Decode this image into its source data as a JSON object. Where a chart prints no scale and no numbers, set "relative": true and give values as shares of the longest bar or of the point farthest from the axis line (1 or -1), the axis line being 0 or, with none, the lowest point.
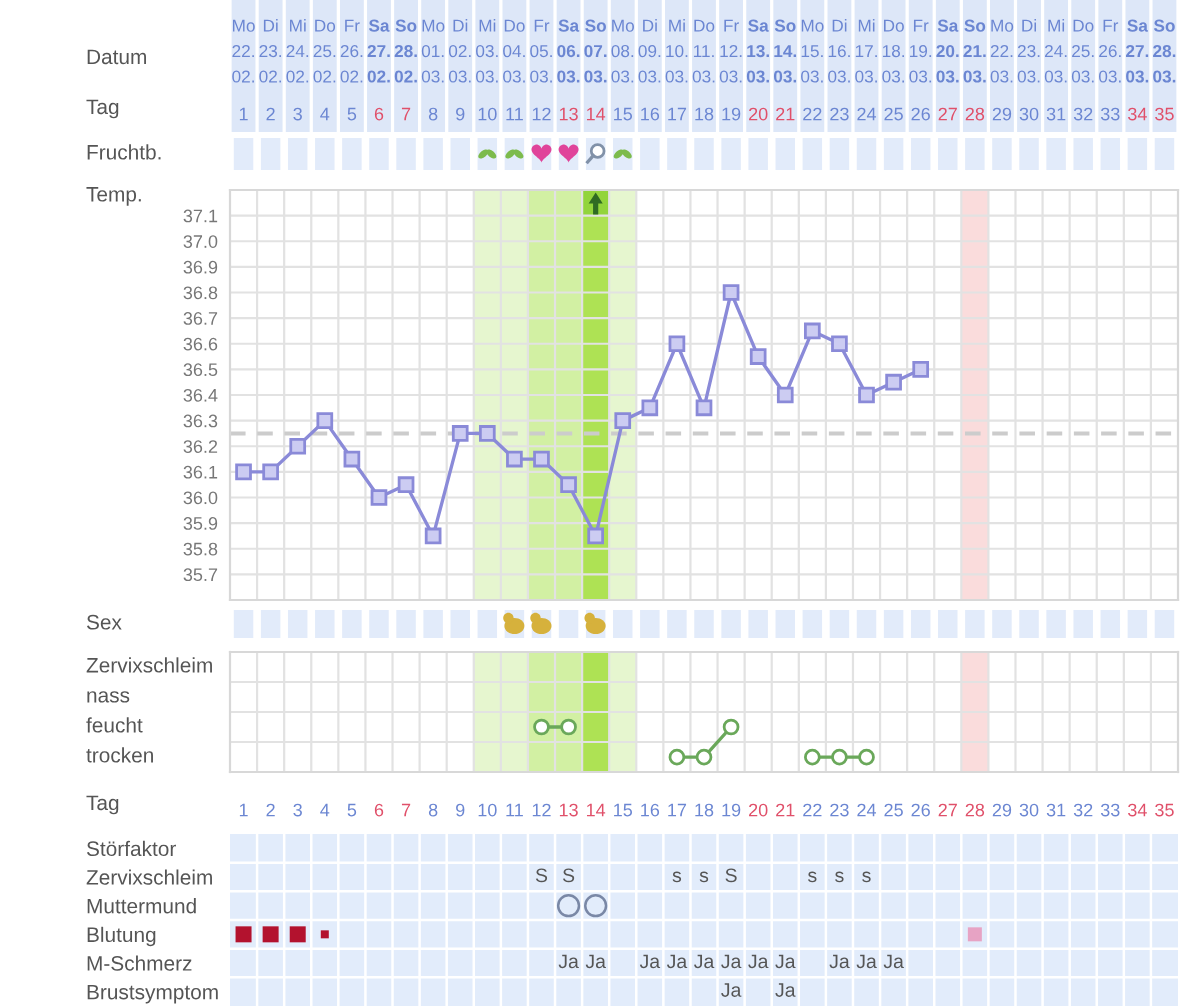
{
  "chart_data": [
    {
      "type": "line",
      "xlabel": "Datum",
      "ylabel": "Temp.",
      "x2label": "Tag",
      "categories": [
        "Mo\n22.\n02.",
        "Di\n23.\n02.",
        "Mi\n24.\n02.",
        "Do\n25.\n02.",
        "Fr\n26.\n02.",
        "Sa\n27.\n02.",
        "So\n28.\n02.",
        "Mo\n01.\n03.",
        "Di\n02.\n03.",
        "Mi\n03.\n03.",
        "Do\n04.\n03.",
        "Fr\n05.\n03.",
        "Sa\n06.\n03.",
        "So\n07.\n03.",
        "Mo\n08.\n03.",
        "Di\n09.\n03.",
        "Mi\n10.\n03.",
        "Do\n11.\n03.",
        "Fr\n12.\n03.",
        "Sa\n13.\n03.",
        "So\n14.\n03.",
        "Mo\n15.\n03.",
        "Di\n16.\n03.",
        "Mi\n17.\n03.",
        "Do\n18.\n03.",
        "Fr\n19.\n03.",
        "Sa\n20.\n03.",
        "So\n21.\n03.",
        "Mo\n22.\n03.",
        "Di\n23.\n03.",
        "Mi\n24.\n03.",
        "Do\n25.\n03.",
        "Fr\n26.\n03.",
        "Sa\n27.\n03.",
        "So\n28.\n03."
      ],
      "x2lim": [
        0.5,
        35.5
      ],
      "x2ticks": [
        1,
        2,
        3,
        4,
        5,
        6,
        7,
        8,
        9,
        10,
        11,
        12,
        13,
        14,
        15,
        16,
        17,
        18,
        19,
        20,
        21,
        22,
        23,
        24,
        25,
        26,
        27,
        28,
        29,
        30,
        31,
        32,
        33,
        34,
        35
      ],
      "series": [
        {
          "color": "#8a8ad8",
          "values": [
            36.1,
            36.1,
            36.2,
            36.3,
            36.15,
            36.0,
            36.05,
            35.85,
            36.25,
            36.25,
            36.15,
            36.15,
            36.05,
            35.85,
            36.3,
            36.35,
            36.6,
            36.35,
            36.8,
            36.55,
            36.4,
            36.65,
            36.6,
            36.4,
            36.45,
            36.5,
            null,
            null,
            null,
            null,
            null,
            null,
            null,
            null,
            null
          ]
        }
      ],
      "ylim": [
        35.6,
        37.2
      ],
      "yticks": [
        35.7,
        35.8,
        35.9,
        {
          "value": 36,
          "label": "36.0"
        },
        36.1,
        36.2,
        36.3,
        36.4,
        36.5,
        36.6,
        36.7,
        36.8,
        36.9,
        {
          "value": 37,
          "label": "37.0"
        },
        37.1
      ],
      "marker": "square",
      "line_style": "solid",
      "grid": true,
      "ref_lines": [
        {
          "axis": "y",
          "value": 36.25,
          "line_style": "dashed",
          "color": "#cccccc"
        }
      ],
      "bands": [
        {
          "axis": "x",
          "from": "Mi\n03.\n03.",
          "to": "Do\n04.\n03.",
          "color": "#e6f6cf"
        },
        {
          "axis": "x",
          "from": "Fr\n05.\n03.",
          "to": "Sa\n06.\n03.",
          "color": "#d2f0a3"
        },
        {
          "axis": "x",
          "from": "So\n07.\n03.",
          "to": "So\n07.\n03.",
          "color": "#aee254"
        },
        {
          "axis": "x",
          "from": "Mo\n08.\n03.",
          "to": "Mo\n08.\n03.",
          "color": "#e6f6cf"
        },
        {
          "axis": "x",
          "from": "So\n21.\n03.",
          "to": "So\n21.\n03.",
          "color": "#fadcdc"
        }
      ],
      "annotations": [
        "Fruchtb.",
        "Sex"
      ]
    },
    {
      "type": "line",
      "title": "Zervixschleim",
      "relative": true,
      "tick_labels": false,
      "categories": [
        "1",
        "2",
        "3",
        "4",
        "5",
        "6",
        "7",
        "8",
        "9",
        "10",
        "11",
        "12",
        "13",
        "14",
        "15",
        "16",
        "17",
        "18",
        "19",
        "20",
        "21",
        "22",
        "23",
        "24",
        "25",
        "26",
        "27",
        "28",
        "29",
        "30",
        "31",
        "32",
        "33",
        "34",
        "35"
      ],
      "series": [
        {
          "color": "#6aa85a",
          "values": [
            null,
            null,
            null,
            null,
            null,
            null,
            null,
            null,
            null,
            null,
            null,
            1,
            1,
            null,
            null,
            null,
            0.33,
            0.33,
            1,
            null,
            null,
            0.33,
            0.33,
            0.33,
            null,
            null,
            null,
            null,
            null,
            null,
            null,
            null,
            null,
            null,
            null
          ]
        }
      ],
      "annotations": [
        "nass",
        "feucht",
        "trocken"
      ],
      "marker": "circle",
      "line_style": "solid",
      "grid": true,
      "bands": [
        {
          "axis": "x",
          "from": "10",
          "to": "11",
          "color": "#e6f6cf"
        },
        {
          "axis": "x",
          "from": "12",
          "to": "13",
          "color": "#d2f0a3"
        },
        {
          "axis": "x",
          "from": "14",
          "to": "14",
          "color": "#aee254"
        },
        {
          "axis": "x",
          "from": "15",
          "to": "15",
          "color": "#e6f6cf"
        },
        {
          "axis": "x",
          "from": "28",
          "to": "28",
          "color": "#fadcdc"
        }
      ]
    },
    {
      "type": "heatmap",
      "xlabel": "Tag",
      "grid": true,
      "categories": [
        "1",
        "2",
        "3",
        "4",
        "5",
        "6",
        "7",
        "8",
        "9",
        "10",
        "11",
        "12",
        "13",
        "14",
        "15",
        "16",
        "17",
        "18",
        "19",
        "20",
        "21",
        "22",
        "23",
        "24",
        "25",
        "26",
        "27",
        "28",
        "29",
        "30",
        "31",
        "32",
        "33",
        "34",
        "35"
      ],
      "y_categories": [
        "Störfaktor",
        "Zervixschleim",
        "Muttermund",
        "Blutung",
        "M-Schmerz",
        "Brustsymptom"
      ],
      "cells": [
        [
          null,
          null,
          null,
          null,
          null,
          null,
          null,
          null,
          null,
          null,
          null,
          null,
          null,
          null,
          null,
          null,
          null,
          null,
          null,
          null,
          null,
          null,
          null,
          null,
          null,
          null,
          null,
          null,
          null,
          null,
          null,
          null,
          null,
          null,
          null
        ],
        [
          null,
          null,
          null,
          null,
          null,
          null,
          null,
          null,
          null,
          null,
          null,
          null,
          null,
          null,
          null,
          null,
          null,
          null,
          null,
          null,
          null,
          null,
          null,
          null,
          null,
          null,
          null,
          null,
          null,
          null,
          null,
          null,
          null,
          null,
          null
        ],
        [
          null,
          null,
          null,
          null,
          null,
          null,
          null,
          null,
          null,
          null,
          null,
          null,
          null,
          null,
          null,
          null,
          null,
          null,
          null,
          null,
          null,
          null,
          null,
          null,
          null,
          null,
          null,
          null,
          null,
          null,
          null,
          null,
          null,
          null,
          null
        ],
        [
          null,
          null,
          null,
          null,
          null,
          null,
          null,
          null,
          null,
          null,
          null,
          null,
          null,
          null,
          null,
          null,
          null,
          null,
          null,
          null,
          null,
          null,
          null,
          null,
          null,
          null,
          null,
          null,
          null,
          null,
          null,
          null,
          null,
          null,
          null
        ],
        [
          null,
          null,
          null,
          null,
          null,
          null,
          null,
          null,
          null,
          null,
          null,
          null,
          null,
          null,
          null,
          null,
          null,
          null,
          null,
          null,
          null,
          null,
          null,
          null,
          null,
          null,
          null,
          null,
          null,
          null,
          null,
          null,
          null,
          null,
          null
        ],
        [
          null,
          null,
          null,
          null,
          null,
          null,
          null,
          null,
          null,
          null,
          null,
          null,
          null,
          null,
          null,
          null,
          null,
          null,
          null,
          null,
          null,
          null,
          null,
          null,
          null,
          null,
          null,
          null,
          null,
          null,
          null,
          null,
          null,
          null,
          null
        ]
      ],
      "cell_labels": [
        [
          null,
          null,
          null,
          null,
          null,
          null,
          null,
          null,
          null,
          null,
          null,
          null,
          null,
          null,
          null,
          null,
          null,
          null,
          null,
          null,
          null,
          null,
          null,
          null,
          null,
          null,
          null,
          null,
          null,
          null,
          null,
          null,
          null,
          null,
          null
        ],
        [
          null,
          null,
          null,
          null,
          null,
          null,
          null,
          null,
          null,
          null,
          null,
          "S",
          "S",
          null,
          null,
          null,
          "s",
          "s",
          "S",
          null,
          null,
          "s",
          "s",
          "s",
          null,
          null,
          null,
          null,
          null,
          null,
          null,
          null,
          null,
          null,
          null
        ],
        [
          null,
          null,
          null,
          null,
          null,
          null,
          null,
          null,
          null,
          null,
          null,
          null,
          null,
          null,
          null,
          null,
          null,
          null,
          null,
          null,
          null,
          null,
          null,
          null,
          null,
          null,
          null,
          null,
          null,
          null,
          null,
          null,
          null,
          null,
          null
        ],
        [
          null,
          null,
          null,
          null,
          null,
          null,
          null,
          null,
          null,
          null,
          null,
          null,
          null,
          null,
          null,
          null,
          null,
          null,
          null,
          null,
          null,
          null,
          null,
          null,
          null,
          null,
          null,
          null,
          null,
          null,
          null,
          null,
          null,
          null,
          null
        ],
        [
          null,
          null,
          null,
          null,
          null,
          null,
          null,
          null,
          null,
          null,
          null,
          null,
          "Ja",
          "Ja",
          null,
          "Ja",
          "Ja",
          "Ja",
          "Ja",
          "Ja",
          "Ja",
          null,
          "Ja",
          "Ja",
          "Ja",
          null,
          null,
          null,
          null,
          null,
          null,
          null,
          null,
          null,
          null
        ],
        [
          null,
          null,
          null,
          null,
          null,
          null,
          null,
          null,
          null,
          null,
          null,
          null,
          null,
          null,
          null,
          null,
          null,
          null,
          "Ja",
          null,
          "Ja",
          null,
          null,
          null,
          null,
          null,
          null,
          null,
          null,
          null,
          null,
          null,
          null,
          null,
          null
        ]
      ]
    }
  ]
}
